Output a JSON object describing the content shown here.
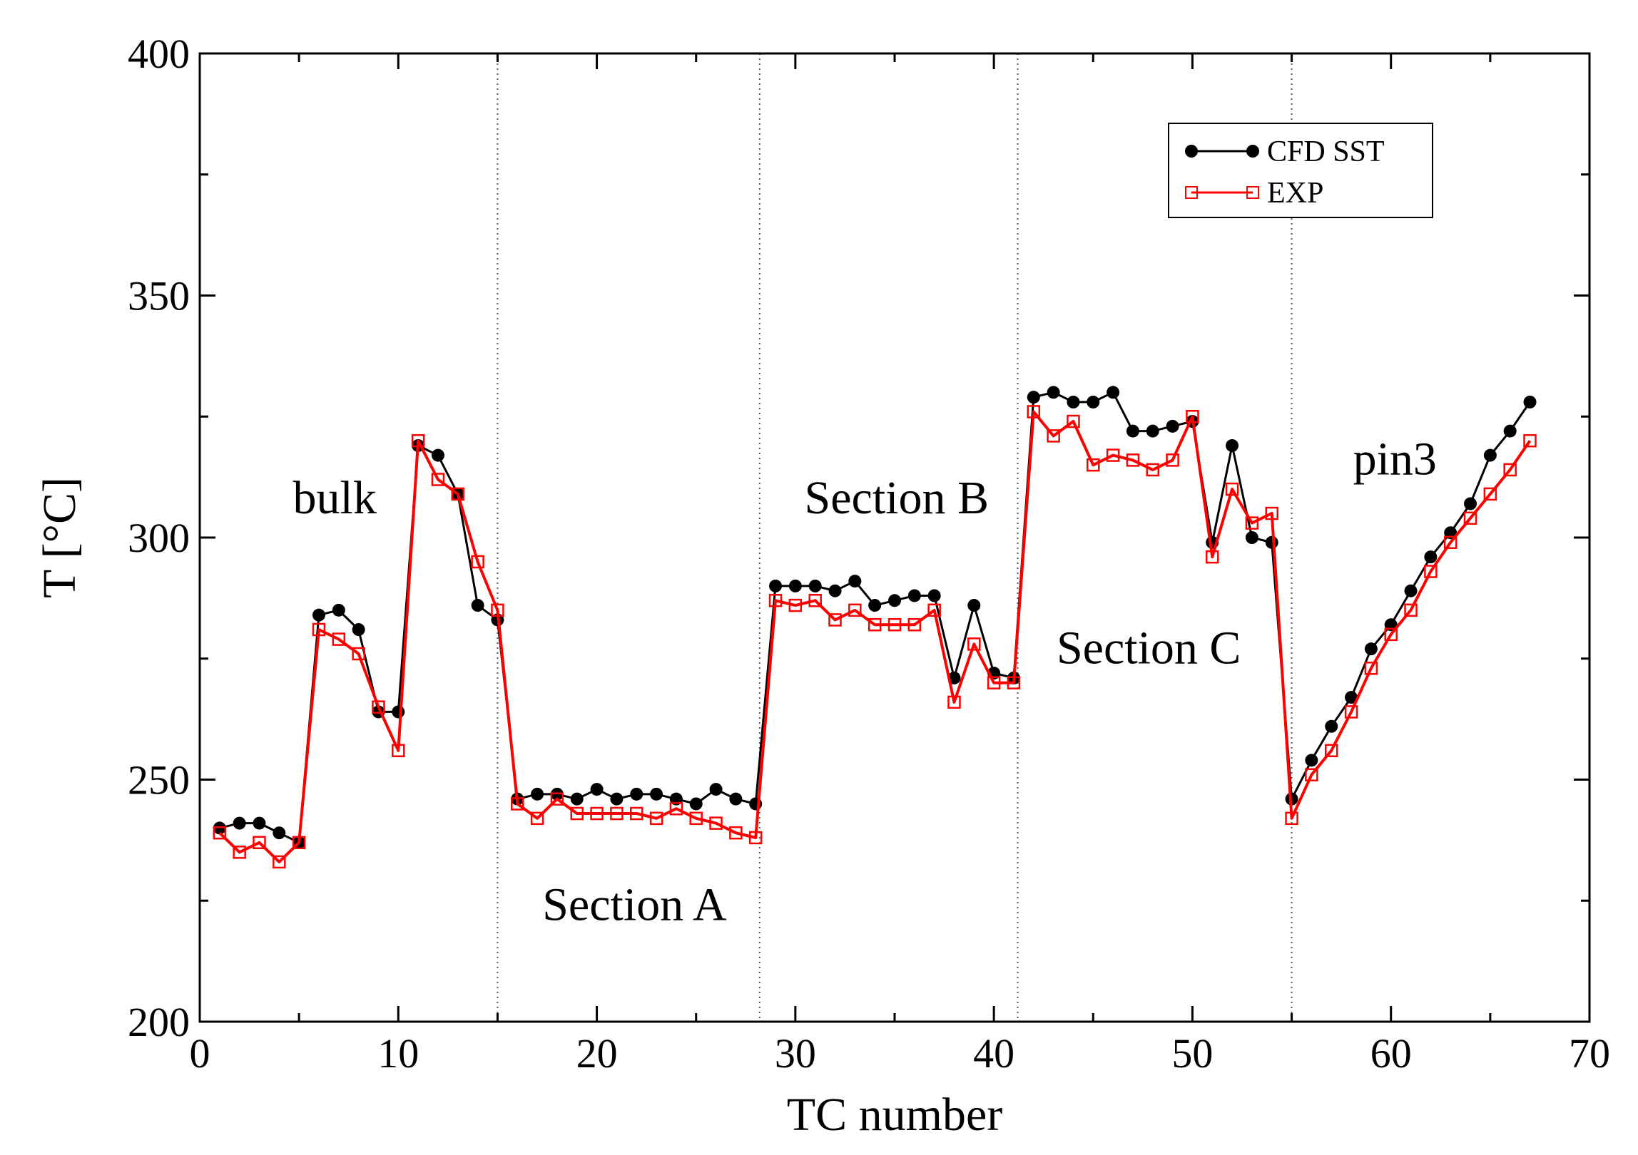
{
  "chart_data": {
    "type": "line",
    "xlabel": "TC number",
    "ylabel": "T [°C]",
    "xlim": [
      0,
      70
    ],
    "ylim": [
      200,
      400
    ],
    "xticks": [
      0,
      10,
      20,
      30,
      40,
      50,
      60,
      70
    ],
    "yticks": [
      200,
      250,
      300,
      350,
      400
    ],
    "x_tick_labels": [
      "0",
      "10",
      "20",
      "30",
      "40",
      "50",
      "60",
      "70"
    ],
    "y_tick_labels": [
      "200",
      "250",
      "300",
      "350",
      "400"
    ],
    "grid": false,
    "legend_position": "top-right",
    "separators": [
      15,
      28.2,
      41.2,
      55
    ],
    "annotations": [
      {
        "text": "bulk",
        "x": 6.8,
        "y": 305
      },
      {
        "text": "Section A",
        "x": 21.9,
        "y": 221
      },
      {
        "text": "Section B",
        "x": 35.1,
        "y": 305
      },
      {
        "text": "Section C",
        "x": 47.8,
        "y": 274
      },
      {
        "text": "pin3",
        "x": 60.2,
        "y": 313
      }
    ],
    "series": [
      {
        "name": "CFD SST",
        "color": "#000000",
        "marker": "filled-circle",
        "x": [
          1,
          2,
          3,
          4,
          5,
          6,
          7,
          8,
          9,
          10,
          11,
          12,
          13,
          14,
          15,
          16,
          17,
          18,
          19,
          20,
          21,
          22,
          23,
          24,
          25,
          26,
          27,
          28,
          29,
          30,
          31,
          32,
          33,
          34,
          35,
          36,
          37,
          38,
          39,
          40,
          41,
          42,
          43,
          44,
          45,
          46,
          47,
          48,
          49,
          50,
          51,
          52,
          53,
          54,
          55,
          56,
          57,
          58,
          59,
          60,
          61,
          62,
          63,
          64,
          65,
          66,
          67
        ],
        "values": [
          240,
          241,
          241,
          239,
          237,
          284,
          285,
          281,
          264,
          264,
          319,
          317,
          309,
          286,
          283,
          246,
          247,
          247,
          246,
          248,
          246,
          247,
          247,
          246,
          245,
          248,
          246,
          245,
          290,
          290,
          290,
          289,
          291,
          286,
          287,
          288,
          288,
          271,
          286,
          272,
          271,
          329,
          330,
          328,
          328,
          330,
          322,
          322,
          323,
          324,
          299,
          319,
          300,
          299,
          246,
          254,
          261,
          267,
          277,
          282,
          289,
          296,
          301,
          307,
          317,
          322,
          328
        ]
      },
      {
        "name": "EXP",
        "color": "#ff0000",
        "marker": "open-square",
        "x": [
          1,
          2,
          3,
          4,
          5,
          6,
          7,
          8,
          9,
          10,
          11,
          12,
          13,
          14,
          15,
          16,
          17,
          18,
          19,
          20,
          21,
          22,
          23,
          24,
          25,
          26,
          27,
          28,
          29,
          30,
          31,
          32,
          33,
          34,
          35,
          36,
          37,
          38,
          39,
          40,
          41,
          42,
          43,
          44,
          45,
          46,
          47,
          48,
          49,
          50,
          51,
          52,
          53,
          54,
          55,
          56,
          57,
          58,
          59,
          60,
          61,
          62,
          63,
          64,
          65,
          66,
          67
        ],
        "values": [
          239,
          235,
          237,
          233,
          237,
          281,
          279,
          276,
          265,
          256,
          320,
          312,
          309,
          295,
          285,
          245,
          242,
          246,
          243,
          243,
          243,
          243,
          242,
          244,
          242,
          241,
          239,
          238,
          287,
          286,
          287,
          283,
          285,
          282,
          282,
          282,
          285,
          266,
          278,
          270,
          270,
          326,
          321,
          324,
          315,
          317,
          316,
          314,
          316,
          325,
          296,
          310,
          303,
          305,
          242,
          251,
          256,
          264,
          273,
          280,
          285,
          293,
          299,
          304,
          309,
          314,
          320
        ]
      }
    ]
  }
}
